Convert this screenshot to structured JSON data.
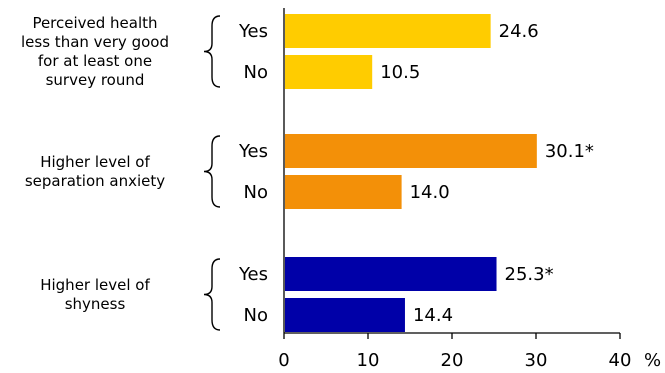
{
  "chart_data": {
    "type": "bar",
    "orientation": "horizontal",
    "groups": [
      {
        "label_lines": [
          "Perceived health",
          "less than very good",
          "for at least one",
          "survey round"
        ],
        "color": "#FFCC00",
        "bars": [
          {
            "category": "Yes",
            "value": 24.6,
            "label": "24.6"
          },
          {
            "category": "No",
            "value": 10.5,
            "label": "10.5"
          }
        ]
      },
      {
        "label_lines": [
          "Higher level of",
          "separation anxiety"
        ],
        "color": "#F39008",
        "bars": [
          {
            "category": "Yes",
            "value": 30.1,
            "label": "30.1*"
          },
          {
            "category": "No",
            "value": 14.0,
            "label": "14.0"
          }
        ]
      },
      {
        "label_lines": [
          "Higher level of",
          "shyness"
        ],
        "color": "#0000A8",
        "bars": [
          {
            "category": "Yes",
            "value": 25.3,
            "label": "25.3*"
          },
          {
            "category": "No",
            "value": 14.4,
            "label": "14.4"
          }
        ]
      }
    ],
    "x_ticks": [
      0,
      10,
      20,
      30,
      40
    ],
    "xlim": [
      0,
      40
    ],
    "x_unit": "%",
    "grid": false
  }
}
